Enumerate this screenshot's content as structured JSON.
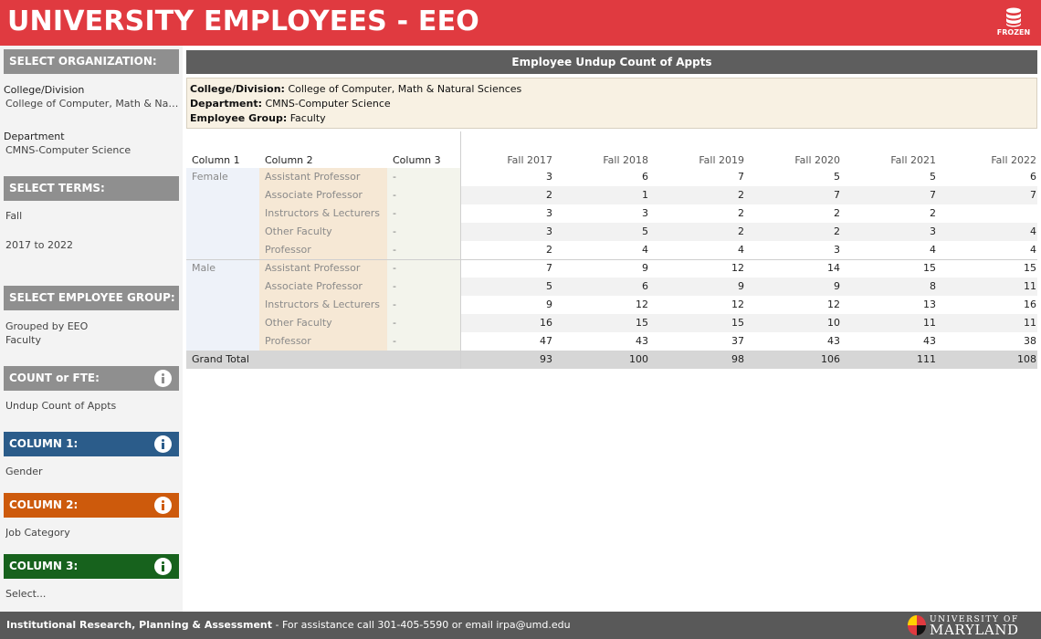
{
  "header": {
    "title": "UNIVERSITY EMPLOYEES - EEO",
    "frozen_label": "FROZEN"
  },
  "sidebar": {
    "org": {
      "heading": "SELECT ORGANIZATION:",
      "college_label": "College/Division",
      "college_value": "College of Computer, Math & Natur..",
      "dept_label": "Department",
      "dept_value": "CMNS-Computer Science"
    },
    "terms": {
      "heading": "SELECT TERMS:",
      "term_value": "Fall",
      "range_value": "2017 to 2022"
    },
    "employee_group": {
      "heading": "SELECT EMPLOYEE GROUP:",
      "value_line1": "Grouped by EEO",
      "value_line2": "Faculty"
    },
    "count_fte": {
      "heading": "COUNT or FTE:",
      "value": "Undup Count of Appts"
    },
    "column1": {
      "heading": "COLUMN 1:",
      "value": "Gender",
      "color": "#2b5c8a"
    },
    "column2": {
      "heading": "COLUMN 2:",
      "value": "Job Category",
      "color": "#cd5a0c"
    },
    "column3": {
      "heading": "COLUMN 3:",
      "value": "Select...",
      "color": "#17621d"
    }
  },
  "main": {
    "sheet_title": "Employee Undup Count of Appts",
    "context": {
      "college_label": "College/Division:",
      "college_value": "College of Computer, Math & Natural Sciences",
      "dept_label": "Department:",
      "dept_value": "CMNS-Computer Science",
      "group_label": "Employee Group:",
      "group_value": "Faculty"
    },
    "table": {
      "col_headers": [
        "Column 1",
        "Column 2",
        "Column 3"
      ],
      "years": [
        "Fall 2017",
        "Fall 2018",
        "Fall 2019",
        "Fall 2020",
        "Fall 2021",
        "Fall 2022"
      ],
      "groups": [
        {
          "gender": "Female",
          "rows": [
            {
              "category": "Assistant Professor",
              "c3": "-",
              "values": [
                "3",
                "6",
                "7",
                "5",
                "5",
                "6"
              ]
            },
            {
              "category": "Associate Professor",
              "c3": "-",
              "values": [
                "2",
                "1",
                "2",
                "7",
                "7",
                "7"
              ]
            },
            {
              "category": "Instructors & Lecturers",
              "c3": "-",
              "values": [
                "3",
                "3",
                "2",
                "2",
                "2",
                ""
              ]
            },
            {
              "category": "Other Faculty",
              "c3": "-",
              "values": [
                "3",
                "5",
                "2",
                "2",
                "3",
                "4"
              ]
            },
            {
              "category": "Professor",
              "c3": "-",
              "values": [
                "2",
                "4",
                "4",
                "3",
                "4",
                "4"
              ]
            }
          ]
        },
        {
          "gender": "Male",
          "rows": [
            {
              "category": "Assistant Professor",
              "c3": "-",
              "values": [
                "7",
                "9",
                "12",
                "14",
                "15",
                "15"
              ]
            },
            {
              "category": "Associate Professor",
              "c3": "-",
              "values": [
                "5",
                "6",
                "9",
                "9",
                "8",
                "11"
              ]
            },
            {
              "category": "Instructors & Lecturers",
              "c3": "-",
              "values": [
                "9",
                "12",
                "12",
                "12",
                "13",
                "16"
              ]
            },
            {
              "category": "Other Faculty",
              "c3": "-",
              "values": [
                "16",
                "15",
                "15",
                "10",
                "11",
                "11"
              ]
            },
            {
              "category": "Professor",
              "c3": "-",
              "values": [
                "47",
                "43",
                "37",
                "43",
                "43",
                "38"
              ]
            }
          ]
        }
      ],
      "grand_total_label": "Grand Total",
      "grand_totals": [
        "93",
        "100",
        "98",
        "106",
        "111",
        "108"
      ]
    }
  },
  "footer": {
    "org_name": "Institutional Research, Planning & Assessment",
    "assist_text": " - For assistance call 301-405-5590 or email irpa@umd.edu",
    "logo_top": "UNIVERSITY OF",
    "logo_bottom": "MARYLAND"
  },
  "colors": {
    "header_red": "#e03a40",
    "panel_gray": "#8f8f8f",
    "footer_gray": "#595959"
  }
}
